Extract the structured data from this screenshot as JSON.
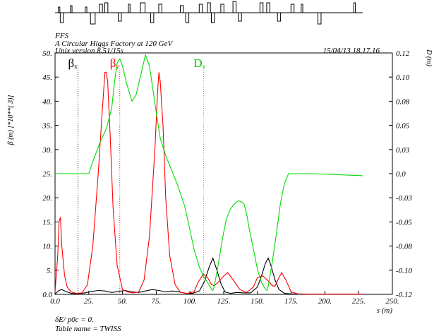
{
  "header": {
    "program": "FFS",
    "title": "A Circular Higgs Factory at 120 GeV",
    "version": "Unix version 8.51/15s",
    "date": "15/04/13  18.17.16"
  },
  "footer": {
    "delta_line": "δE/ p0c  =  0.",
    "table_line": "Table name  =  TWISS"
  },
  "chart_data": {
    "type": "line",
    "title": "A Circular Higgs Factory at 120 GeV",
    "xlabel": "s (m)",
    "ylabel_left": "β (m)    [*10**(  3)]",
    "ylabel_right": "D (m)",
    "xlim": [
      0,
      250
    ],
    "ylim_left": [
      0,
      50
    ],
    "ylim_right": [
      -0.12,
      0.12
    ],
    "x_ticks": [
      "0.0",
      "25.",
      "50.",
      "75.",
      "100.",
      "125.",
      "150.",
      "175.",
      "200.",
      "225.",
      "250."
    ],
    "y_ticks_left": [
      "0.0",
      "5.",
      "10.",
      "15.",
      "20.",
      "25.",
      "30.",
      "35.",
      "40.",
      "45.",
      "50."
    ],
    "y_ticks_right": [
      "-0.12",
      "-0.10",
      "-0.08",
      "-0.05",
      "-0.03",
      "0.0",
      "0.03",
      "0.05",
      "0.08",
      "0.10",
      "0.12"
    ],
    "markers": [
      {
        "label": "βx",
        "color": "#000000",
        "x": 17
      },
      {
        "label": "βy",
        "color": "#ff0000",
        "x": 48
      },
      {
        "label": "Dx",
        "color": "#00cc00",
        "x": 110
      }
    ],
    "series": [
      {
        "name": "βx",
        "axis": "left",
        "color": "#000000",
        "x": [
          0,
          3,
          5,
          8,
          12,
          17,
          22,
          27,
          32,
          37,
          42,
          47,
          52,
          57,
          62,
          67,
          72,
          77,
          82,
          87,
          92,
          97,
          102,
          107,
          111,
          114,
          117,
          120,
          123,
          126,
          130,
          135,
          140,
          145,
          150,
          153,
          156,
          158,
          160,
          163,
          166,
          170,
          175,
          185,
          200,
          228
        ],
        "y": [
          0.1,
          0.8,
          1.0,
          0.6,
          0.2,
          0.1,
          0.3,
          0.6,
          0.8,
          0.7,
          0.4,
          0.6,
          0.8,
          0.5,
          0.4,
          0.7,
          1.0,
          0.8,
          0.5,
          0.7,
          0.5,
          0.2,
          0.2,
          0.7,
          2.8,
          5.5,
          7.5,
          5.0,
          2.2,
          0.5,
          0.2,
          0.4,
          0.3,
          0.3,
          1.5,
          3.8,
          6.5,
          7.5,
          6.0,
          3.0,
          1.0,
          0.2,
          0.1,
          0.05,
          0.05,
          0.05
        ]
      },
      {
        "name": "βy",
        "axis": "left",
        "color": "#ff0000",
        "x": [
          0,
          2,
          3,
          4,
          5,
          7,
          9,
          12,
          16,
          20,
          24,
          28,
          32,
          35,
          37,
          38,
          39,
          41,
          43,
          46,
          50,
          54,
          58,
          62,
          66,
          70,
          74,
          76,
          77,
          78,
          80,
          82,
          85,
          89,
          93,
          98,
          103,
          106,
          110,
          113,
          116,
          118,
          121,
          125,
          128,
          132,
          137,
          142,
          147,
          150,
          154,
          158,
          161,
          163,
          166,
          168,
          171,
          175,
          180,
          190,
          228
        ],
        "y": [
          0.5,
          8,
          15,
          16,
          10,
          4,
          1.5,
          0.5,
          0.2,
          0.3,
          2,
          10,
          25,
          38,
          46,
          46,
          44,
          32,
          18,
          6,
          1,
          0.5,
          0.3,
          0.5,
          3,
          12,
          30,
          42,
          46,
          44,
          35,
          20,
          8,
          2,
          0.4,
          0.2,
          0.5,
          2.5,
          4.2,
          3.5,
          2.0,
          1.8,
          2.5,
          3.8,
          4.5,
          3.0,
          1.0,
          0.4,
          1.5,
          3.5,
          3.8,
          2.8,
          1.8,
          1.7,
          3.5,
          4.5,
          3.0,
          0.5,
          0.1,
          0.05,
          0.05
        ]
      },
      {
        "name": "Dx",
        "axis": "right",
        "color": "#00dd00",
        "x": [
          0,
          25,
          28,
          33,
          38,
          42,
          44,
          46,
          48,
          50,
          53,
          57,
          60,
          63,
          67,
          70,
          74,
          78,
          82,
          86,
          91,
          96,
          99,
          103,
          107,
          110,
          113,
          116,
          117,
          118,
          121,
          124,
          127,
          130,
          133,
          136,
          138,
          140,
          142,
          144,
          147,
          150,
          153,
          156,
          157,
          158,
          161,
          164,
          167,
          170,
          173,
          178,
          190,
          228
        ],
        "y": [
          0.0,
          0.0,
          0.012,
          0.03,
          0.045,
          0.065,
          0.09,
          0.11,
          0.114,
          0.107,
          0.09,
          0.072,
          0.078,
          0.095,
          0.118,
          0.107,
          0.07,
          0.035,
          0.018,
          0.005,
          -0.012,
          -0.032,
          -0.05,
          -0.075,
          -0.093,
          -0.102,
          -0.108,
          -0.115,
          -0.116,
          -0.112,
          -0.09,
          -0.065,
          -0.045,
          -0.035,
          -0.03,
          -0.027,
          -0.028,
          -0.03,
          -0.04,
          -0.055,
          -0.075,
          -0.095,
          -0.108,
          -0.115,
          -0.116,
          -0.112,
          -0.088,
          -0.06,
          -0.03,
          -0.01,
          0.0,
          0.0,
          0.0,
          -0.002
        ]
      }
    ],
    "lattice": [
      {
        "s": 3,
        "h": 8,
        "w": 1
      },
      {
        "s": 5,
        "h": 14,
        "w": 2
      },
      {
        "s": 12,
        "h": 10,
        "w": 1
      },
      {
        "s": 23,
        "h": 8,
        "w": 1
      },
      {
        "s": 28,
        "h": 16,
        "w": 3
      },
      {
        "s": 34,
        "h": 12,
        "w": 2
      },
      {
        "s": 38,
        "h": 14,
        "w": 2
      },
      {
        "s": 48,
        "h": 12,
        "w": 2
      },
      {
        "s": 55,
        "h": 12,
        "w": 1
      },
      {
        "s": 65,
        "h": 14,
        "w": 3
      },
      {
        "s": 72,
        "h": 14,
        "w": 2
      },
      {
        "s": 78,
        "h": 12,
        "w": 2
      },
      {
        "s": 94,
        "h": 10,
        "w": 2
      },
      {
        "s": 98,
        "h": 14,
        "w": 2
      },
      {
        "s": 108,
        "h": 12,
        "w": 2
      },
      {
        "s": 114,
        "h": 14,
        "w": 2
      },
      {
        "s": 117,
        "h": 14,
        "w": 2
      },
      {
        "s": 124,
        "h": 12,
        "w": 2
      },
      {
        "s": 133,
        "h": 16,
        "w": 2
      },
      {
        "s": 137,
        "h": 12,
        "w": 2
      },
      {
        "s": 153,
        "h": 14,
        "w": 2
      },
      {
        "s": 158,
        "h": 14,
        "w": 2
      },
      {
        "s": 166,
        "h": 12,
        "w": 2
      },
      {
        "s": 176,
        "h": 12,
        "w": 2
      },
      {
        "s": 183,
        "h": 12,
        "w": 1
      },
      {
        "s": 196,
        "h": 16,
        "w": 2
      },
      {
        "s": 222,
        "h": 14,
        "w": 1
      }
    ]
  }
}
